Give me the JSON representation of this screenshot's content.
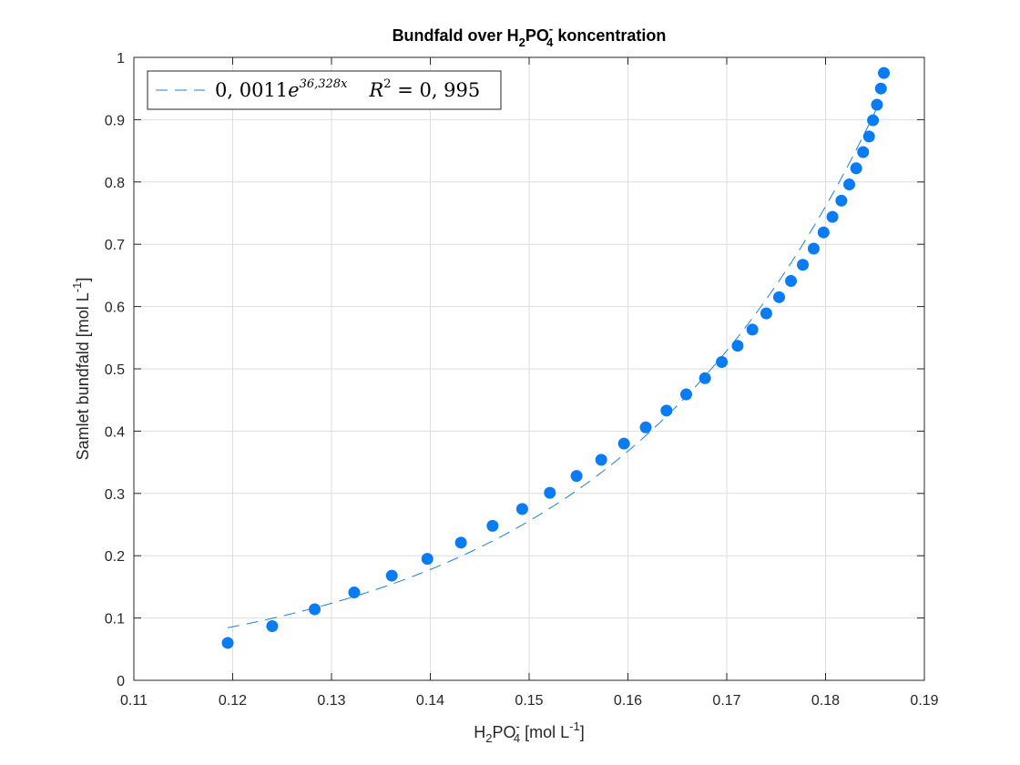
{
  "chart_data": {
    "type": "scatter",
    "title": {
      "prefix": "Bundfald over H",
      "sub1": "2",
      "mid": "PO",
      "sup": "-",
      "sub2": "4",
      "suffix": " koncentration"
    },
    "xlabel": {
      "prefix": "H",
      "sub1": "2",
      "mid": "PO",
      "sup": "-",
      "sub2": "4",
      "suffix": " [mol L",
      "sup2": "-1",
      "end": "]"
    },
    "ylabel": {
      "prefix": "Samlet bundfald [mol L",
      "sup": "-1",
      "end": "]"
    },
    "xlim": [
      0.11,
      0.19
    ],
    "ylim": [
      0,
      1
    ],
    "xticks": [
      "0.11",
      "0.12",
      "0.13",
      "0.14",
      "0.15",
      "0.16",
      "0.17",
      "0.18",
      "0.19"
    ],
    "yticks": [
      "0",
      "0.1",
      "0.2",
      "0.3",
      "0.4",
      "0.5",
      "0.6",
      "0.7",
      "0.8",
      "0.9",
      "1"
    ],
    "grid": true,
    "legend_position": "top-left",
    "legend": {
      "coef": "0, 0011",
      "e": "e",
      "exp": "36,328x",
      "r2_prefix": "R",
      "r2_exp": "2",
      "r2_suffix": " = 0, 995"
    },
    "marker_color": "#0a7cf2",
    "fit_color": "#1a80e6",
    "fit": {
      "a": 0.0011,
      "b": 36.328,
      "x_start": 0.1195,
      "x_end": 0.1855
    },
    "series": [
      {
        "x": [
          0.1195,
          0.124,
          0.1283,
          0.1323,
          0.1361,
          0.1397,
          0.1431,
          0.1463,
          0.1493,
          0.1521,
          0.1548,
          0.1573,
          0.1596,
          0.1618,
          0.1639,
          0.1659,
          0.1678,
          0.1695,
          0.1711,
          0.1726,
          0.174,
          0.1753,
          0.1765,
          0.1777,
          0.1788,
          0.1798,
          0.1807,
          0.1816,
          0.1824,
          0.1831,
          0.1838,
          0.1844,
          0.1848,
          0.1852,
          0.1856,
          0.1859
        ],
        "y": [
          0.06,
          0.087,
          0.114,
          0.141,
          0.168,
          0.195,
          0.221,
          0.248,
          0.275,
          0.301,
          0.328,
          0.354,
          0.38,
          0.406,
          0.433,
          0.459,
          0.485,
          0.511,
          0.537,
          0.563,
          0.589,
          0.615,
          0.641,
          0.667,
          0.693,
          0.719,
          0.744,
          0.77,
          0.796,
          0.822,
          0.848,
          0.873,
          0.899,
          0.924,
          0.95,
          0.975
        ]
      }
    ]
  }
}
